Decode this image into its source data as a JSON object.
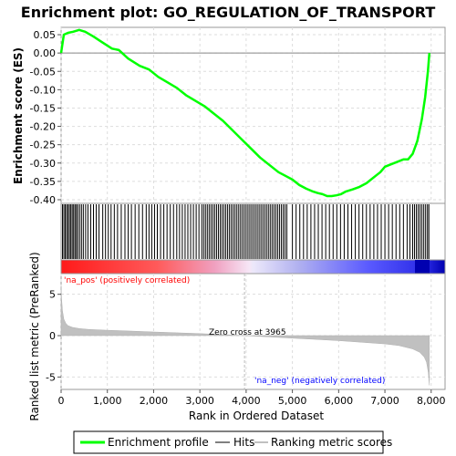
{
  "chart_data": [
    {
      "panel": "enrichment",
      "type": "line",
      "title": "Enrichment plot: GO_REGULATION_OF_TRANSPORT",
      "ylabel": "Enrichment score (ES)",
      "xlim": [
        0,
        8300
      ],
      "ylim": [
        -0.41,
        0.07
      ],
      "yticks": [
        "0.05",
        "0.00",
        "-0.05",
        "-0.10",
        "-0.15",
        "-0.20",
        "-0.25",
        "-0.30",
        "-0.35",
        "-0.40"
      ],
      "yticks_values": [
        0.05,
        0.0,
        -0.05,
        -0.1,
        -0.15,
        -0.2,
        -0.25,
        -0.3,
        -0.35,
        -0.4
      ],
      "grid": true,
      "series": [
        {
          "name": "Enrichment profile",
          "color": "#00ff00",
          "x": [
            0,
            60,
            150,
            260,
            390,
            520,
            700,
            880,
            1100,
            1250,
            1450,
            1700,
            1900,
            2100,
            2300,
            2500,
            2700,
            2900,
            3100,
            3300,
            3500,
            3700,
            3900,
            4100,
            4300,
            4500,
            4700,
            4850,
            5000,
            5150,
            5300,
            5450,
            5550,
            5650,
            5750,
            5850,
            5950,
            6050,
            6150,
            6300,
            6450,
            6600,
            6700,
            6800,
            6900,
            7000,
            7100,
            7200,
            7300,
            7400,
            7500,
            7600,
            7700,
            7800,
            7870,
            7930,
            7960
          ],
          "y": [
            0.0,
            0.05,
            0.055,
            0.058,
            0.063,
            0.058,
            0.045,
            0.03,
            0.012,
            0.008,
            -0.015,
            -0.035,
            -0.045,
            -0.065,
            -0.08,
            -0.095,
            -0.115,
            -0.13,
            -0.145,
            -0.165,
            -0.185,
            -0.21,
            -0.235,
            -0.26,
            -0.285,
            -0.305,
            -0.325,
            -0.335,
            -0.345,
            -0.36,
            -0.37,
            -0.378,
            -0.382,
            -0.385,
            -0.39,
            -0.39,
            -0.388,
            -0.385,
            -0.378,
            -0.372,
            -0.365,
            -0.355,
            -0.345,
            -0.335,
            -0.325,
            -0.31,
            -0.305,
            -0.3,
            -0.295,
            -0.29,
            -0.29,
            -0.275,
            -0.24,
            -0.18,
            -0.12,
            -0.05,
            0.0
          ]
        }
      ]
    },
    {
      "panel": "hits",
      "type": "scatter",
      "series": [
        {
          "name": "Hits",
          "color": "#000000",
          "x": [
            30,
            60,
            90,
            120,
            150,
            180,
            210,
            240,
            270,
            300,
            330,
            360,
            400,
            440,
            480,
            530,
            580,
            640,
            700,
            760,
            820,
            900,
            960,
            1020,
            1080,
            1150,
            1220,
            1300,
            1380,
            1450,
            1520,
            1600,
            1680,
            1760,
            1840,
            1900,
            1960,
            2020,
            2080,
            2150,
            2220,
            2290,
            2360,
            2430,
            2500,
            2560,
            2620,
            2680,
            2740,
            2800,
            2860,
            2920,
            2980,
            3040,
            3080,
            3120,
            3160,
            3200,
            3240,
            3280,
            3320,
            3360,
            3400,
            3440,
            3480,
            3520,
            3560,
            3600,
            3640,
            3680,
            3720,
            3760,
            3800,
            3840,
            3880,
            3920,
            3960,
            4000,
            4040,
            4080,
            4120,
            4160,
            4200,
            4240,
            4280,
            4320,
            4360,
            4400,
            4440,
            4480,
            4520,
            4560,
            4600,
            4640,
            4680,
            4720,
            4760,
            4800,
            4840,
            4880,
            5000,
            5080,
            5160,
            5240,
            5320,
            5400,
            5480,
            5560,
            5640,
            5720,
            5800,
            5880,
            5960,
            6040,
            6120,
            6200,
            6280,
            6360,
            6440,
            6520,
            6600,
            6680,
            6760,
            6840,
            6920,
            7000,
            7080,
            7160,
            7240,
            7320,
            7400,
            7480,
            7540,
            7600,
            7640,
            7680,
            7720,
            7760,
            7800,
            7840,
            7880,
            7920,
            7950
          ]
        }
      ]
    },
    {
      "panel": "ranked-list",
      "type": "area",
      "ylabel": "Ranked list metric (PreRanked)",
      "xlabel": "Rank in Ordered Dataset",
      "xlim": [
        0,
        8300
      ],
      "ylim": [
        -6.5,
        7.5
      ],
      "xticks": [
        "0",
        "1,000",
        "2,000",
        "3,000",
        "4,000",
        "5,000",
        "6,000",
        "7,000",
        "8,000"
      ],
      "xticks_values": [
        0,
        1000,
        2000,
        3000,
        4000,
        5000,
        6000,
        7000,
        8000
      ],
      "yticks": [
        "5",
        "0",
        "-5"
      ],
      "yticks_values": [
        5,
        0,
        -5
      ],
      "grid": true,
      "series": [
        {
          "name": "Ranking metric scores",
          "color": "#c0c0c0",
          "x": [
            0,
            10,
            30,
            60,
            100,
            150,
            250,
            400,
            600,
            1000,
            1500,
            2000,
            2500,
            3000,
            3500,
            3965,
            4500,
            5000,
            5500,
            6000,
            6500,
            7000,
            7300,
            7600,
            7750,
            7850,
            7900,
            7940,
            7960
          ],
          "y": [
            6.0,
            4.5,
            3.0,
            2.0,
            1.5,
            1.2,
            1.0,
            0.85,
            0.75,
            0.65,
            0.55,
            0.45,
            0.35,
            0.25,
            0.12,
            0.0,
            -0.15,
            -0.3,
            -0.45,
            -0.6,
            -0.8,
            -1.0,
            -1.2,
            -1.6,
            -2.0,
            -2.6,
            -3.2,
            -4.5,
            -6.0
          ]
        }
      ],
      "annotations": {
        "pos_label": "'na_pos' (positively correlated)",
        "neg_label": "'na_neg' (negatively correlated)",
        "zero_cross": "Zero cross at 3965",
        "zero_cross_x": 3965,
        "pos_color": "#ff0000",
        "neg_color": "#0000ff"
      }
    }
  ],
  "legend": {
    "placement": "bottom",
    "items": [
      {
        "label": "Enrichment profile",
        "color": "#00ff00"
      },
      {
        "label": "Hits",
        "color": "#808080"
      },
      {
        "label": "Ranking metric scores",
        "color": "#c0c0c0"
      }
    ]
  }
}
